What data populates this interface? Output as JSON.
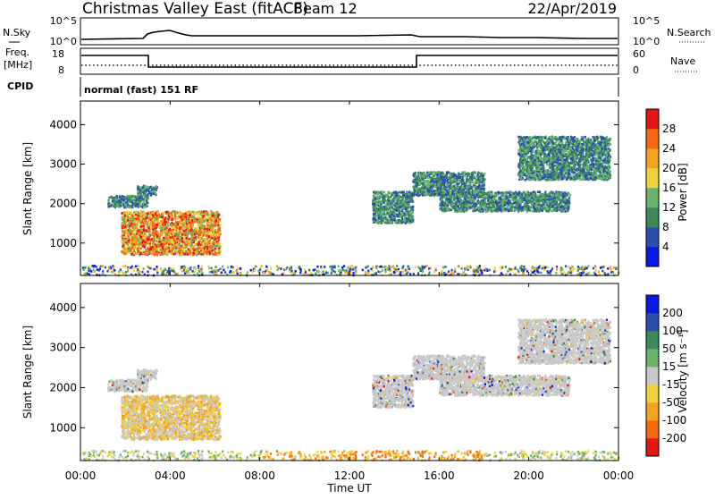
{
  "header": {
    "title": "Christmas Valley East (fitACF)",
    "beam": "Beam 12",
    "date": "22/Apr/2019"
  },
  "panels": {
    "nsky": {
      "left_label": "N.Sky",
      "right_label": "N.Search",
      "left_ticks": [
        "10^5",
        "10^0"
      ],
      "right_ticks": [
        "10^5",
        "10^0"
      ]
    },
    "freq": {
      "left_label_1": "Freq.",
      "left_label_2": "[MHz]",
      "right_label": "Nave",
      "left_ticks": [
        "18",
        "8"
      ],
      "right_ticks": [
        "60",
        "0"
      ]
    },
    "cpid": {
      "label": "CPID",
      "text": "normal (fast) 151 RF"
    }
  },
  "colors": {
    "power": [
      "#0a17e6",
      "#2b4fb0",
      "#3c8a5a",
      "#69b46a",
      "#f0d23c",
      "#f5a21e",
      "#f56a10",
      "#e61414"
    ],
    "velocity": [
      "#e61414",
      "#f56a10",
      "#f5a21e",
      "#f0d23c",
      "#c8c8c8",
      "#69b46a",
      "#3c8a5a",
      "#2b4fb0",
      "#0a17e6"
    ]
  },
  "chart_data": [
    {
      "type": "heatmap",
      "quantity": "power",
      "xlabel": "Time UT",
      "ylabel": "Slant Range [km]",
      "xlim": [
        0,
        24
      ],
      "ylim": [
        180,
        4600
      ],
      "x_tick_labels": [
        "00:00",
        "04:00",
        "08:00",
        "12:00",
        "16:00",
        "20:00",
        "00:00"
      ],
      "y_tick_labels": [
        "1000",
        "2000",
        "3000",
        "4000"
      ],
      "colorbar": {
        "label": "Power [dB]",
        "tick_labels": [
          "4",
          "8",
          "12",
          "16",
          "20",
          "24",
          "28"
        ]
      },
      "regions": [
        {
          "t0": 1.2,
          "t1": 3.0,
          "r0": 1900,
          "r1": 2200,
          "level": "mid"
        },
        {
          "t0": 1.8,
          "t1": 6.2,
          "r0": 700,
          "r1": 1800,
          "level": "high"
        },
        {
          "t0": 2.5,
          "t1": 3.4,
          "r0": 2200,
          "r1": 2450,
          "level": "mid"
        },
        {
          "t0": 13.0,
          "t1": 14.8,
          "r0": 1500,
          "r1": 2300,
          "level": "mid"
        },
        {
          "t0": 14.8,
          "t1": 18.0,
          "r0": 2200,
          "r1": 2800,
          "level": "mid"
        },
        {
          "t0": 16.0,
          "t1": 21.8,
          "r0": 1800,
          "r1": 2300,
          "level": "mid"
        },
        {
          "t0": 19.5,
          "t1": 23.6,
          "r0": 2600,
          "r1": 3700,
          "level": "mid"
        },
        {
          "t0": 0.0,
          "t1": 24.0,
          "r0": 180,
          "r1": 420,
          "level": "ground"
        }
      ]
    },
    {
      "type": "heatmap",
      "quantity": "velocity",
      "xlabel": "Time UT",
      "ylabel": "Slant Range [km]",
      "xlim": [
        0,
        24
      ],
      "ylim": [
        180,
        4600
      ],
      "x_tick_labels": [
        "00:00",
        "04:00",
        "08:00",
        "12:00",
        "16:00",
        "20:00",
        "00:00"
      ],
      "y_tick_labels": [
        "1000",
        "2000",
        "3000",
        "4000"
      ],
      "colorbar": {
        "label": "Velocity [m s⁻¹]",
        "tick_labels": [
          "200",
          "100",
          "50",
          "15",
          "-15",
          "-50",
          "-100",
          "-200"
        ]
      }
    }
  ]
}
